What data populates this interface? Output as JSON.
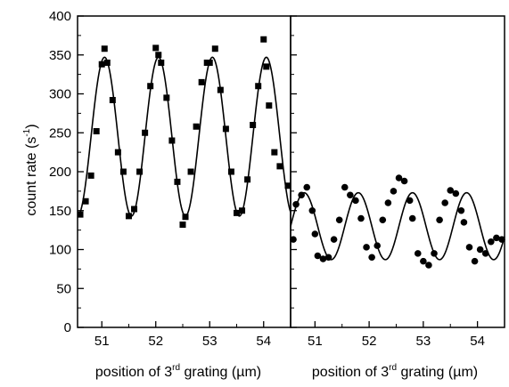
{
  "chart_data": [
    {
      "type": "scatter",
      "panel": "left",
      "marker": "square",
      "title": "",
      "xlabel": {
        "pre": "position of 3",
        "sup": "rd",
        "post": " grating (µm)"
      },
      "ylabel": {
        "pre": "count rate (s",
        "sup": "-1",
        "post": ")"
      },
      "xlim": [
        50.55,
        54.5
      ],
      "ylim": [
        0,
        400
      ],
      "x_ticks": [
        51,
        52,
        53,
        54
      ],
      "y_ticks": [
        0,
        50,
        100,
        150,
        200,
        250,
        300,
        350,
        400
      ],
      "grid": false,
      "series": [
        {
          "kind": "points",
          "x": [
            50.6,
            50.7,
            50.8,
            50.9,
            51.0,
            51.05,
            51.1,
            51.2,
            51.3,
            51.4,
            51.5,
            51.6,
            51.7,
            51.8,
            51.9,
            52.0,
            52.05,
            52.1,
            52.2,
            52.3,
            52.4,
            52.5,
            52.55,
            52.65,
            52.75,
            52.85,
            52.95,
            53.0,
            53.1,
            53.2,
            53.3,
            53.4,
            53.5,
            53.6,
            53.7,
            53.8,
            53.9,
            54.0,
            54.05,
            54.1,
            54.2,
            54.3,
            54.45
          ],
          "y": [
            145,
            162,
            195,
            252,
            338,
            358,
            340,
            292,
            225,
            200,
            143,
            152,
            200,
            250,
            310,
            359,
            350,
            340,
            295,
            240,
            187,
            132,
            142,
            200,
            258,
            315,
            340,
            340,
            358,
            305,
            255,
            200,
            147,
            150,
            190,
            260,
            310,
            370,
            335,
            285,
            225,
            207,
            182
          ]
        },
        {
          "kind": "fit",
          "model": "sinusoid",
          "mean": 245,
          "amplitude": 102,
          "period": 1.0,
          "peak_x": 51.05,
          "x_range": [
            50.55,
            54.5
          ]
        }
      ]
    },
    {
      "type": "scatter",
      "panel": "right",
      "marker": "circle",
      "title": "",
      "xlabel": {
        "pre": "position of 3",
        "sup": "rd",
        "post": " grating (µm)"
      },
      "xlim": [
        50.55,
        54.5
      ],
      "ylim": [
        0,
        400
      ],
      "x_ticks": [
        51,
        52,
        53,
        54
      ],
      "y_ticks": [
        0,
        50,
        100,
        150,
        200,
        250,
        300,
        350,
        400
      ],
      "grid": false,
      "series": [
        {
          "kind": "points",
          "x": [
            50.6,
            50.65,
            50.75,
            50.85,
            50.95,
            51.0,
            51.05,
            51.15,
            51.25,
            51.35,
            51.45,
            51.55,
            51.65,
            51.75,
            51.85,
            51.95,
            52.05,
            52.15,
            52.25,
            52.35,
            52.45,
            52.55,
            52.65,
            52.75,
            52.8,
            52.9,
            53.0,
            53.1,
            53.2,
            53.3,
            53.4,
            53.5,
            53.6,
            53.7,
            53.75,
            53.85,
            53.95,
            54.05,
            54.15,
            54.25,
            54.35,
            54.45
          ],
          "y": [
            113,
            158,
            170,
            180,
            150,
            120,
            92,
            88,
            90,
            113,
            138,
            180,
            170,
            163,
            140,
            103,
            90,
            105,
            138,
            160,
            175,
            192,
            188,
            163,
            140,
            95,
            85,
            80,
            95,
            138,
            160,
            176,
            172,
            150,
            135,
            103,
            85,
            100,
            95,
            110,
            115,
            113
          ]
        },
        {
          "kind": "fit",
          "model": "sinusoid",
          "mean": 130,
          "amplitude": 43,
          "period": 1.0,
          "peak_x": 50.8,
          "x_range": [
            50.55,
            54.5
          ]
        }
      ]
    }
  ]
}
